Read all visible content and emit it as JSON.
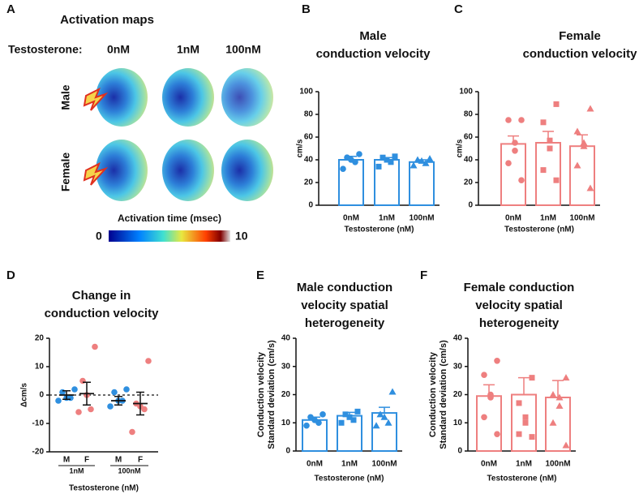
{
  "panel_a": {
    "label": "A",
    "title": "Activation maps",
    "row_label": "Testosterone:",
    "columns": [
      "0nM",
      "1nM",
      "100nM"
    ],
    "rows": [
      "Male",
      "Female"
    ],
    "colorbar": {
      "label": "Activation time (msec)",
      "min": 0,
      "max": 10
    }
  },
  "chart_data": [
    {
      "type": "bar",
      "label": "B",
      "title": [
        "Male",
        "conduction velocity"
      ],
      "ylabel": [
        "cm/s"
      ],
      "xlabel": "Testosterone (nM)",
      "color": "#2f8fdf",
      "categories": [
        "0nM",
        "1nM",
        "100nM"
      ],
      "values": [
        40,
        40,
        38
      ],
      "errors": [
        3,
        2,
        2
      ],
      "points": [
        [
          45,
          42,
          40,
          38,
          32
        ],
        [
          43,
          42,
          40,
          38,
          34
        ],
        [
          41,
          40,
          39,
          37,
          35
        ]
      ],
      "markers": [
        "circle",
        "square",
        "triangle"
      ],
      "ylim": [
        0,
        100
      ],
      "yticks": [
        0,
        20,
        40,
        60,
        80,
        100
      ]
    },
    {
      "type": "bar",
      "label": "C",
      "title": [
        "Female",
        "conduction velocity"
      ],
      "ylabel": [
        "cm/s"
      ],
      "xlabel": "Testosterone (nM)",
      "color": "#ee7f7f",
      "categories": [
        "0nM",
        "1nM",
        "100nM"
      ],
      "values": [
        54,
        55,
        52
      ],
      "errors": [
        7,
        10,
        10
      ],
      "points": [
        [
          75,
          75,
          55,
          48,
          37,
          22
        ],
        [
          89,
          73,
          57,
          50,
          31,
          22
        ],
        [
          85,
          65,
          55,
          52,
          35,
          15
        ]
      ],
      "markers": [
        "circle",
        "square",
        "triangle"
      ],
      "ylim": [
        0,
        100
      ],
      "yticks": [
        0,
        20,
        40,
        60,
        80,
        100
      ]
    },
    {
      "type": "scatter",
      "label": "D",
      "title": [
        "Change in",
        "conduction velocity"
      ],
      "ylabel": [
        "Δcm/s"
      ],
      "xlabel": "Testosterone (nM)",
      "categories": [
        "M",
        "F",
        "M",
        "F"
      ],
      "groups": [
        "1nM",
        "100nM"
      ],
      "colors": [
        "#2f8fdf",
        "#ee7f7f",
        "#2f8fdf",
        "#ee7f7f"
      ],
      "values": [
        0,
        0.5,
        -2,
        -3
      ],
      "errors": [
        1.5,
        4,
        1.5,
        4
      ],
      "points": [
        [
          2,
          1,
          -1,
          -1,
          -2
        ],
        [
          17,
          5,
          0,
          -5,
          -6
        ],
        [
          2,
          1,
          -2,
          -2,
          -4
        ],
        [
          12,
          -3,
          -4,
          -5,
          -13
        ]
      ],
      "reference_line": 0,
      "ylim": [
        -20,
        20
      ],
      "yticks": [
        -20,
        -10,
        0,
        10,
        20
      ]
    },
    {
      "type": "bar",
      "label": "E",
      "title": [
        "Male conduction",
        "velocity spatial",
        "heterogeneity"
      ],
      "ylabel": [
        "Conduction velocity",
        "Standard deviation (cm/s)"
      ],
      "xlabel": "Testosterone (nM)",
      "color": "#2f8fdf",
      "categories": [
        "0nM",
        "1nM",
        "100nM"
      ],
      "values": [
        11,
        12.5,
        13.5
      ],
      "errors": [
        1,
        1.2,
        2
      ],
      "points": [
        [
          13,
          12,
          11,
          10,
          9
        ],
        [
          14,
          13,
          12,
          11,
          10
        ],
        [
          21,
          13,
          12,
          10,
          9
        ]
      ],
      "markers": [
        "circle",
        "square",
        "triangle"
      ],
      "ylim": [
        0,
        40
      ],
      "yticks": [
        0,
        10,
        20,
        30,
        40
      ]
    },
    {
      "type": "bar",
      "label": "F",
      "title": [
        "Female conduction",
        "velocity spatial",
        "heterogeneity"
      ],
      "ylabel": [
        "Conduction velocity",
        "Standard deviation (cm/s)"
      ],
      "xlabel": "Testosterone (nM)",
      "color": "#ee7f7f",
      "categories": [
        "0nM",
        "1nM",
        "100nM"
      ],
      "values": [
        19.5,
        20,
        19
      ],
      "errors": [
        4,
        6,
        6
      ],
      "points": [
        [
          32,
          27,
          20,
          19,
          12,
          6
        ],
        [
          26,
          17,
          12,
          10,
          6,
          5
        ],
        [
          26,
          20,
          19,
          16,
          10,
          2
        ]
      ],
      "markers": [
        "circle",
        "square",
        "triangle"
      ],
      "ylim": [
        0,
        40
      ],
      "yticks": [
        0,
        10,
        20,
        30,
        40
      ]
    }
  ]
}
